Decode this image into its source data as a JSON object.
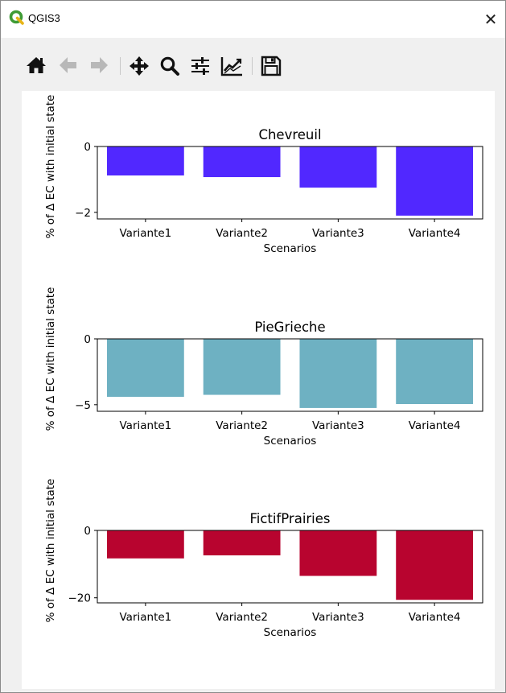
{
  "window": {
    "title": "QGIS3",
    "close_glyph": "✕"
  },
  "toolbar": {
    "buttons": [
      {
        "icon": "home-icon",
        "label": "Home"
      },
      {
        "icon": "back-arrow-icon",
        "label": "Back"
      },
      {
        "icon": "forward-arrow-icon",
        "label": "Forward"
      },
      {
        "icon": "pan-icon",
        "label": "Pan"
      },
      {
        "icon": "zoom-icon",
        "label": "Zoom"
      },
      {
        "icon": "configure-subplots-icon",
        "label": "Configure subplots"
      },
      {
        "icon": "edit-axis-icon",
        "label": "Edit axis"
      },
      {
        "icon": "save-icon",
        "label": "Save"
      }
    ]
  },
  "chart_data": [
    {
      "type": "bar",
      "title": "Chevreuil",
      "xlabel": "Scenarios",
      "ylabel": "% of Δ EC with initial state",
      "categories": [
        "Variante1",
        "Variante2",
        "Variante3",
        "Variante4"
      ],
      "values": [
        -0.88,
        -0.93,
        -1.25,
        -2.1
      ],
      "ylim": [
        -2.2,
        0
      ],
      "yticks": [
        0,
        -2
      ],
      "color": "#5128ff"
    },
    {
      "type": "bar",
      "title": "PieGrieche",
      "xlabel": "Scenarios",
      "ylabel": "% of Δ EC with initial state",
      "categories": [
        "Variante1",
        "Variante2",
        "Variante3",
        "Variante4"
      ],
      "values": [
        -4.4,
        -4.25,
        -5.25,
        -4.95
      ],
      "ylim": [
        -5.5,
        0
      ],
      "yticks": [
        0,
        -5
      ],
      "color": "#6eb1c2"
    },
    {
      "type": "bar",
      "title": "FictifPrairies",
      "xlabel": "Scenarios",
      "ylabel": "% of Δ EC with initial state",
      "categories": [
        "Variante1",
        "Variante2",
        "Variante3",
        "Variante4"
      ],
      "values": [
        -8.3,
        -7.4,
        -13.5,
        -20.6
      ],
      "ylim": [
        -21.5,
        0
      ],
      "yticks": [
        0,
        -20
      ],
      "color": "#b8042f"
    }
  ]
}
